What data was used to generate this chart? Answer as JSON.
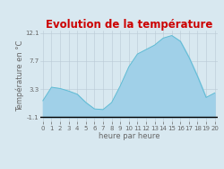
{
  "title": "Evolution de la température",
  "xlabel": "heure par heure",
  "ylabel": "Température en °C",
  "background_color": "#d8e8f0",
  "plot_bg_color": "#d8e8f0",
  "title_color": "#cc0000",
  "line_color": "#60bcd4",
  "fill_color": "#a0d0e8",
  "hours": [
    0,
    1,
    2,
    3,
    4,
    5,
    6,
    7,
    8,
    9,
    10,
    11,
    12,
    13,
    14,
    15,
    16,
    17,
    18,
    19,
    20
  ],
  "temperatures": [
    1.5,
    3.6,
    3.4,
    3.0,
    2.5,
    1.2,
    0.2,
    0.1,
    1.2,
    3.8,
    6.8,
    8.8,
    9.5,
    10.2,
    11.3,
    11.7,
    10.8,
    8.3,
    5.3,
    2.0,
    2.7
  ],
  "yticks": [
    -1.1,
    3.3,
    7.7,
    12.1
  ],
  "ylim": [
    -1.8,
    12.5
  ],
  "xlim": [
    -0.3,
    20.3
  ],
  "xtick_labels": [
    "0",
    "1",
    "2",
    "3",
    "4",
    "5",
    "6",
    "7",
    "8",
    "9",
    "10",
    "11",
    "12",
    "13",
    "14",
    "15",
    "16",
    "17",
    "18",
    "19",
    "20"
  ],
  "grid_color": "#b8c8d4",
  "axis_color": "#666666",
  "fill_baseline": -1.1,
  "tick_fontsize": 5.0,
  "label_fontsize": 6.0,
  "title_fontsize": 8.5
}
